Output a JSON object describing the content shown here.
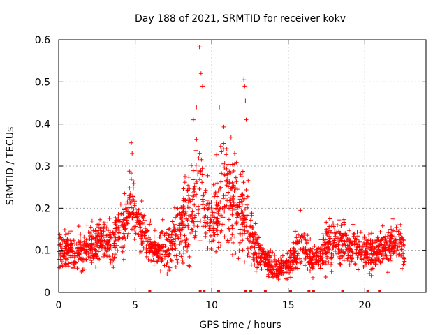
{
  "chart_data": {
    "type": "scatter",
    "title": "Day 188 of 2021, SRMTID for receiver kokv",
    "xlabel": "GPS time / hours",
    "ylabel": "SRMTID / TECUs",
    "xlim": [
      0,
      24
    ],
    "ylim": [
      0,
      0.6
    ],
    "x_ticks": [
      0,
      5,
      10,
      15,
      20
    ],
    "x_tick_labels": [
      "0",
      "5",
      "10",
      "15",
      "20"
    ],
    "y_ticks": [
      0,
      0.1,
      0.2,
      0.3,
      0.4,
      0.5,
      0.6
    ],
    "y_tick_labels": [
      "0",
      "0.1",
      "0.2",
      "0.3",
      "0.4",
      "0.5",
      "0.6"
    ],
    "grid": true,
    "marker": "plus",
    "color": "#ff0000",
    "series": [
      {
        "name": "SRMTID",
        "envelope": {
          "x": [
            0.0,
            0.5,
            1.0,
            1.5,
            2.0,
            2.5,
            3.0,
            3.5,
            4.0,
            4.5,
            4.7,
            5.0,
            5.5,
            6.0,
            6.5,
            7.0,
            7.5,
            8.0,
            8.5,
            9.0,
            9.2,
            9.5,
            10.0,
            10.5,
            10.8,
            11.0,
            11.5,
            12.0,
            12.2,
            12.5,
            13.0,
            13.5,
            14.0,
            14.5,
            15.0,
            15.5,
            16.0,
            16.5,
            17.0,
            17.5,
            18.0,
            18.5,
            19.0,
            19.5,
            20.0,
            20.5,
            21.0,
            21.5,
            22.0,
            22.6
          ],
          "mean": [
            0.1,
            0.1,
            0.09,
            0.1,
            0.11,
            0.12,
            0.13,
            0.13,
            0.14,
            0.18,
            0.22,
            0.2,
            0.14,
            0.11,
            0.1,
            0.1,
            0.12,
            0.15,
            0.19,
            0.23,
            0.26,
            0.22,
            0.15,
            0.21,
            0.25,
            0.23,
            0.2,
            0.18,
            0.17,
            0.14,
            0.1,
            0.08,
            0.06,
            0.06,
            0.06,
            0.09,
            0.11,
            0.08,
            0.08,
            0.11,
            0.12,
            0.11,
            0.11,
            0.11,
            0.1,
            0.09,
            0.1,
            0.11,
            0.13,
            0.1
          ],
          "spread": [
            0.04,
            0.04,
            0.04,
            0.04,
            0.04,
            0.04,
            0.05,
            0.05,
            0.05,
            0.07,
            0.09,
            0.07,
            0.05,
            0.04,
            0.04,
            0.05,
            0.06,
            0.07,
            0.1,
            0.12,
            0.13,
            0.1,
            0.07,
            0.1,
            0.12,
            0.11,
            0.1,
            0.1,
            0.08,
            0.07,
            0.04,
            0.03,
            0.03,
            0.03,
            0.03,
            0.04,
            0.04,
            0.03,
            0.03,
            0.05,
            0.05,
            0.05,
            0.04,
            0.04,
            0.04,
            0.04,
            0.04,
            0.04,
            0.04,
            0.04
          ]
        },
        "points_per_hour": 90,
        "peaks": [
          [
            9.2,
            0.583
          ],
          [
            9.3,
            0.52
          ],
          [
            9.4,
            0.49
          ],
          [
            10.5,
            0.44
          ],
          [
            12.1,
            0.505
          ],
          [
            12.15,
            0.49
          ],
          [
            12.2,
            0.455
          ],
          [
            12.25,
            0.41
          ],
          [
            4.75,
            0.355
          ],
          [
            4.8,
            0.33
          ],
          [
            9.0,
            0.44
          ],
          [
            8.8,
            0.41
          ],
          [
            15.8,
            0.195
          ],
          [
            11.5,
            0.33
          ]
        ]
      }
    ],
    "zero_markers_x": [
      5.95,
      9.25,
      9.5,
      10.45,
      12.2,
      12.55,
      13.5,
      15.15,
      16.35,
      16.65,
      18.55,
      20.2,
      20.95
    ]
  }
}
